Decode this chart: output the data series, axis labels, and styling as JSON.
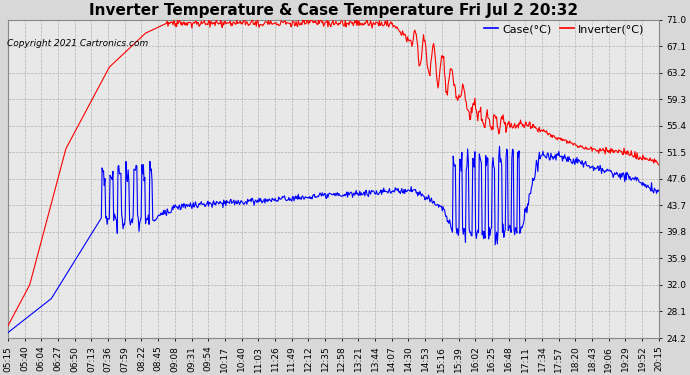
{
  "title": "Inverter Temperature & Case Temperature Fri Jul 2 20:32",
  "copyright": "Copyright 2021 Cartronics.com",
  "legend_labels": [
    "Case(°C)",
    "Inverter(°C)"
  ],
  "legend_colors": [
    "blue",
    "red"
  ],
  "ylim": [
    24.2,
    71.0
  ],
  "yticks": [
    24.2,
    28.1,
    32.0,
    35.9,
    39.8,
    43.7,
    47.6,
    51.5,
    55.4,
    59.3,
    63.2,
    67.1,
    71.0
  ],
  "background_color": "#d8d8d8",
  "plot_bg_color": "#e8e8e8",
  "grid_color": "#b0b0b0",
  "title_fontsize": 11,
  "tick_fontsize": 6.5,
  "copyright_fontsize": 6.5,
  "legend_fontsize": 8,
  "line_width": 0.8,
  "n_points": 900,
  "xtick_labels": [
    "05:15",
    "05:40",
    "06:04",
    "06:27",
    "06:50",
    "07:13",
    "07:36",
    "07:59",
    "08:22",
    "08:45",
    "09:08",
    "09:31",
    "09:54",
    "10:17",
    "10:40",
    "11:03",
    "11:26",
    "11:49",
    "12:12",
    "12:35",
    "12:58",
    "13:21",
    "13:44",
    "14:07",
    "14:30",
    "14:53",
    "15:16",
    "15:39",
    "16:02",
    "16:25",
    "16:48",
    "17:11",
    "17:34",
    "17:57",
    "18:20",
    "18:43",
    "19:06",
    "19:29",
    "19:52",
    "20:15"
  ]
}
